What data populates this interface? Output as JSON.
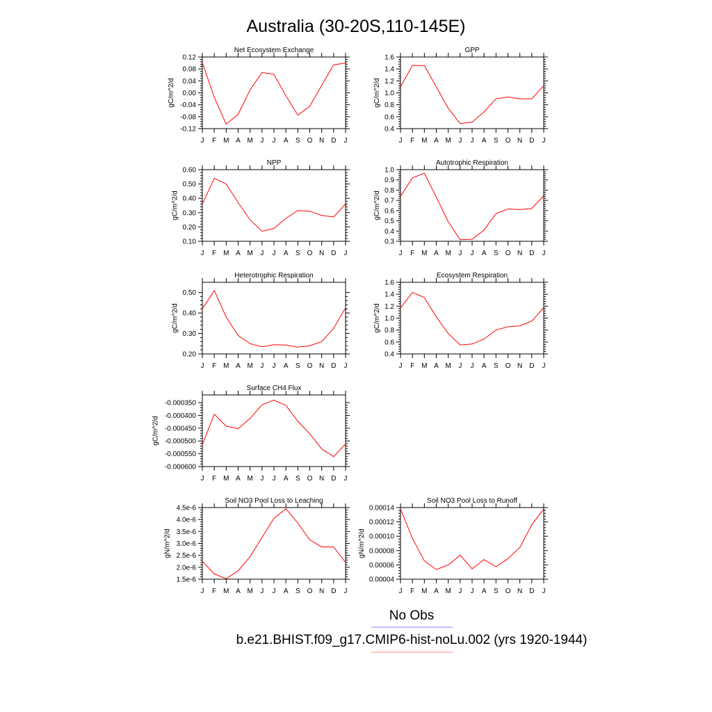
{
  "page": {
    "title": "Australia (30-20S,110-145E)",
    "legend": {
      "obs_label": "No Obs",
      "obs_color": "#8080ff",
      "model_label": "b.e21.BHIST.f09_g17.CMIP6-hist-noLu.002 (yrs 1920-1944)",
      "model_color": "#ff8080"
    },
    "line_color": "#ff0000"
  },
  "chart_data": [
    {
      "type": "line",
      "title": "Net Ecosystem Exchange",
      "ylabel": "gC/m^2/d",
      "x": [
        "J",
        "F",
        "M",
        "A",
        "M",
        "J",
        "J",
        "A",
        "S",
        "O",
        "N",
        "D",
        "J"
      ],
      "ylim": [
        -0.12,
        0.12
      ],
      "yticks": [
        "-0.12",
        "-0.08",
        "-0.04",
        "0.00",
        "0.04",
        "0.08",
        "0.12"
      ],
      "grid": false,
      "series": [
        {
          "values": [
            0.101,
            -0.015,
            -0.105,
            -0.072,
            0.01,
            0.068,
            0.062,
            -0.01,
            -0.075,
            -0.045,
            0.025,
            0.094,
            0.1
          ]
        }
      ]
    },
    {
      "type": "line",
      "title": "GPP",
      "ylabel": "gC/m^2/d",
      "x": [
        "J",
        "F",
        "M",
        "A",
        "M",
        "J",
        "J",
        "A",
        "S",
        "O",
        "N",
        "D",
        "J"
      ],
      "ylim": [
        0.4,
        1.6
      ],
      "yticks": [
        "0.4",
        "0.6",
        "0.8",
        "1.0",
        "1.2",
        "1.4",
        "1.6"
      ],
      "grid": false,
      "series": [
        {
          "values": [
            1.1,
            1.46,
            1.455,
            1.1,
            0.74,
            0.485,
            0.51,
            0.68,
            0.9,
            0.93,
            0.9,
            0.9,
            1.12
          ]
        }
      ]
    },
    {
      "type": "line",
      "title": "NPP",
      "ylabel": "gC/m^2/d",
      "x": [
        "J",
        "F",
        "M",
        "A",
        "M",
        "J",
        "J",
        "A",
        "S",
        "O",
        "N",
        "D",
        "J"
      ],
      "ylim": [
        0.1,
        0.6
      ],
      "yticks": [
        "0.10",
        "0.20",
        "0.30",
        "0.40",
        "0.50",
        "0.60"
      ],
      "grid": false,
      "series": [
        {
          "values": [
            0.36,
            0.54,
            0.5,
            0.37,
            0.25,
            0.17,
            0.19,
            0.26,
            0.315,
            0.31,
            0.28,
            0.27,
            0.36
          ]
        }
      ]
    },
    {
      "type": "line",
      "title": "Autotrophic Respiration",
      "ylabel": "gC/m^2/d",
      "x": [
        "J",
        "F",
        "M",
        "A",
        "M",
        "J",
        "J",
        "A",
        "S",
        "O",
        "N",
        "D",
        "J"
      ],
      "ylim": [
        0.3,
        1.0
      ],
      "yticks": [
        "0.3",
        "0.4",
        "0.5",
        "0.6",
        "0.7",
        "0.8",
        "0.9",
        "1.0"
      ],
      "grid": false,
      "series": [
        {
          "values": [
            0.74,
            0.92,
            0.965,
            0.73,
            0.49,
            0.315,
            0.32,
            0.41,
            0.57,
            0.615,
            0.61,
            0.62,
            0.745
          ]
        }
      ]
    },
    {
      "type": "line",
      "title": "Heterotrophic Respiration",
      "ylabel": "gC/m^2/d",
      "x": [
        "J",
        "F",
        "M",
        "A",
        "M",
        "J",
        "J",
        "A",
        "S",
        "O",
        "N",
        "D",
        "J"
      ],
      "ylim": [
        0.2,
        0.55
      ],
      "yticks": [
        "0.20",
        "0.30",
        "0.40",
        "0.50"
      ],
      "grid": false,
      "series": [
        {
          "values": [
            0.42,
            0.51,
            0.38,
            0.29,
            0.25,
            0.235,
            0.245,
            0.243,
            0.233,
            0.24,
            0.26,
            0.325,
            0.425
          ]
        }
      ]
    },
    {
      "type": "line",
      "title": "Ecosystem Respiration",
      "ylabel": "gC/m^2/d",
      "x": [
        "J",
        "F",
        "M",
        "A",
        "M",
        "J",
        "J",
        "A",
        "S",
        "O",
        "N",
        "D",
        "J"
      ],
      "ylim": [
        0.4,
        1.6
      ],
      "yticks": [
        "0.4",
        "0.6",
        "0.8",
        "1.0",
        "1.2",
        "1.4",
        "1.6"
      ],
      "grid": false,
      "series": [
        {
          "values": [
            1.17,
            1.43,
            1.345,
            1.02,
            0.74,
            0.55,
            0.565,
            0.65,
            0.8,
            0.855,
            0.87,
            0.95,
            1.175
          ]
        }
      ]
    },
    {
      "type": "line",
      "title": "Surface CH4 Flux",
      "ylabel": "gC/m^2/d",
      "x": [
        "J",
        "F",
        "M",
        "A",
        "M",
        "J",
        "J",
        "A",
        "S",
        "O",
        "N",
        "D",
        "J"
      ],
      "ylim": [
        -0.0006,
        -0.00032
      ],
      "yticks": [
        "-0.000600",
        "-0.000550",
        "-0.000500",
        "-0.000450",
        "-0.000400",
        "-0.000350"
      ],
      "grid": false,
      "series": [
        {
          "values": [
            -0.000515,
            -0.000395,
            -0.000442,
            -0.000452,
            -0.000412,
            -0.000359,
            -0.00034,
            -0.000361,
            -0.000423,
            -0.000472,
            -0.000531,
            -0.000561,
            -0.000512
          ]
        }
      ]
    },
    {
      "type": "line",
      "title": "Soil NO3 Pool Loss to Leaching",
      "ylabel": "gN/m^2/d",
      "x": [
        "J",
        "F",
        "M",
        "A",
        "M",
        "J",
        "J",
        "A",
        "S",
        "O",
        "N",
        "D",
        "J"
      ],
      "ylim": [
        1.5e-06,
        4.5e-06
      ],
      "yticks": [
        "1.5e-6",
        "2.0e-6",
        "2.5e-6",
        "3.0e-6",
        "3.5e-6",
        "4.0e-6",
        "4.5e-6"
      ],
      "grid": false,
      "series": [
        {
          "values": [
            2.25e-06,
            1.72e-06,
            1.52e-06,
            1.85e-06,
            2.45e-06,
            3.25e-06,
            4.05e-06,
            4.45e-06,
            3.85e-06,
            3.15e-06,
            2.85e-06,
            2.85e-06,
            2.2e-06
          ]
        }
      ]
    },
    {
      "type": "line",
      "title": "Soil NO3 Pool Loss to Runoff",
      "ylabel": "gN/m^2/d",
      "x": [
        "J",
        "F",
        "M",
        "A",
        "M",
        "J",
        "J",
        "A",
        "S",
        "O",
        "N",
        "D",
        "J"
      ],
      "ylim": [
        4e-05,
        0.00014
      ],
      "yticks": [
        "0.00004",
        "0.00006",
        "0.00008",
        "0.00010",
        "0.00012",
        "0.00014"
      ],
      "grid": false,
      "series": [
        {
          "values": [
            0.000138,
            9.7e-05,
            6.55e-05,
            5.35e-05,
            6e-05,
            7.35e-05,
            5.45e-05,
            6.75e-05,
            5.75e-05,
            6.85e-05,
            8.45e-05,
            0.000116,
            0.000138
          ]
        }
      ]
    }
  ]
}
